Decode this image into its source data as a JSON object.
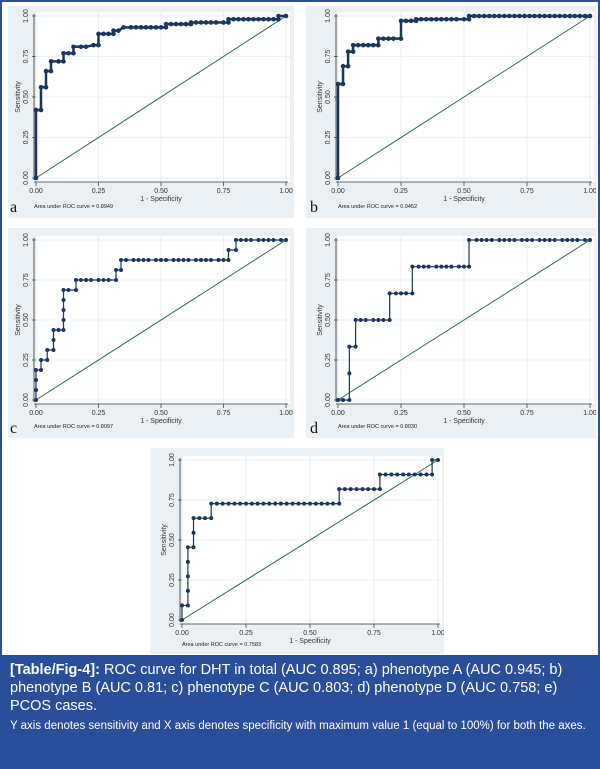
{
  "figure": {
    "caption_label": "[Table/Fig-4]:",
    "caption_text": " ROC curve for DHT in total (AUC 0.895; a) phenotype A (AUC 0.945; b) phenotype B (AUC 0.81; c) phenotype C (AUC 0.803; d) phenotype D (AUC 0.758; e) PCOS cases.",
    "caption_note": "Y axis denotes sensitivity and X axis denotes specificity with maximum value 1 (equal to 100%) for both the axes.",
    "colors": {
      "frame": "#2a4f9a",
      "curve": "#1b365d",
      "reference": "#2e6b4e",
      "plot_bg": "#ffffff",
      "panel_bg": "#eaf0f4",
      "grid": "#e3ebf0"
    }
  },
  "chart_data": [
    {
      "type": "line",
      "panel": "a",
      "xlabel": "1 - Specificity",
      "ylabel": "Sensitivity",
      "xticks": [
        "0.00",
        "0.25",
        "0.50",
        "0.75",
        "1.00"
      ],
      "yticks": [
        "0.00",
        "0.25",
        "0.50",
        "0.75",
        "1.00"
      ],
      "xlim": [
        0,
        1
      ],
      "ylim": [
        0,
        1
      ],
      "grid": true,
      "annotation": "Area under ROC curve = 0.8949",
      "series": [
        {
          "name": "ROC",
          "x": [
            0.0,
            0.0,
            0.02,
            0.02,
            0.04,
            0.04,
            0.06,
            0.06,
            0.09,
            0.11,
            0.11,
            0.13,
            0.15,
            0.15,
            0.18,
            0.2,
            0.23,
            0.25,
            0.25,
            0.27,
            0.29,
            0.31,
            0.31,
            0.33,
            0.35,
            0.38,
            0.4,
            0.42,
            0.44,
            0.46,
            0.48,
            0.5,
            0.52,
            0.52,
            0.54,
            0.56,
            0.58,
            0.6,
            0.62,
            0.62,
            0.64,
            0.66,
            0.68,
            0.7,
            0.72,
            0.75,
            0.77,
            0.77,
            0.79,
            0.81,
            0.83,
            0.85,
            0.87,
            0.89,
            0.91,
            0.93,
            0.95,
            0.97,
            0.97,
            1.0
          ],
          "y": [
            0.0,
            0.42,
            0.42,
            0.56,
            0.56,
            0.66,
            0.66,
            0.72,
            0.72,
            0.72,
            0.77,
            0.77,
            0.77,
            0.81,
            0.81,
            0.81,
            0.82,
            0.82,
            0.89,
            0.89,
            0.89,
            0.89,
            0.91,
            0.91,
            0.93,
            0.93,
            0.93,
            0.93,
            0.93,
            0.93,
            0.93,
            0.93,
            0.93,
            0.95,
            0.95,
            0.95,
            0.95,
            0.95,
            0.95,
            0.96,
            0.96,
            0.96,
            0.96,
            0.96,
            0.96,
            0.96,
            0.96,
            0.98,
            0.98,
            0.98,
            0.98,
            0.98,
            0.98,
            0.98,
            0.98,
            0.98,
            0.98,
            0.98,
            1.0,
            1.0
          ]
        },
        {
          "name": "Reference",
          "x": [
            0,
            1
          ],
          "y": [
            0,
            1
          ]
        }
      ]
    },
    {
      "type": "line",
      "panel": "b",
      "xlabel": "1 - Specificity",
      "ylabel": "Sensitivity",
      "xticks": [
        "0.00",
        "0.25",
        "0.50",
        "0.75",
        "1.00"
      ],
      "yticks": [
        "0.00",
        "0.25",
        "0.50",
        "0.75",
        "1.00"
      ],
      "xlim": [
        0,
        1
      ],
      "ylim": [
        0,
        1
      ],
      "grid": true,
      "annotation": "Area under ROC curve = 0.9452",
      "series": [
        {
          "name": "ROC",
          "x": [
            0.0,
            0.0,
            0.02,
            0.02,
            0.04,
            0.04,
            0.06,
            0.06,
            0.08,
            0.1,
            0.12,
            0.14,
            0.16,
            0.16,
            0.18,
            0.2,
            0.22,
            0.25,
            0.25,
            0.27,
            0.29,
            0.31,
            0.31,
            0.33,
            0.35,
            0.37,
            0.39,
            0.41,
            0.43,
            0.45,
            0.47,
            0.5,
            0.52,
            0.52,
            0.54,
            0.56,
            0.58,
            0.6,
            0.62,
            0.64,
            0.66,
            0.68,
            0.7,
            0.72,
            0.74,
            0.76,
            0.78,
            0.8,
            0.82,
            0.84,
            0.86,
            0.88,
            0.9,
            0.92,
            0.94,
            0.96,
            0.98,
            1.0
          ],
          "y": [
            0.0,
            0.58,
            0.58,
            0.69,
            0.69,
            0.78,
            0.78,
            0.82,
            0.82,
            0.82,
            0.82,
            0.82,
            0.82,
            0.86,
            0.86,
            0.86,
            0.86,
            0.86,
            0.97,
            0.97,
            0.97,
            0.97,
            0.98,
            0.98,
            0.98,
            0.98,
            0.98,
            0.98,
            0.98,
            0.98,
            0.98,
            0.98,
            0.98,
            1.0,
            1.0,
            1.0,
            1.0,
            1.0,
            1.0,
            1.0,
            1.0,
            1.0,
            1.0,
            1.0,
            1.0,
            1.0,
            1.0,
            1.0,
            1.0,
            1.0,
            1.0,
            1.0,
            1.0,
            1.0,
            1.0,
            1.0,
            1.0,
            1.0
          ]
        },
        {
          "name": "Reference",
          "x": [
            0,
            1
          ],
          "y": [
            0,
            1
          ]
        }
      ]
    },
    {
      "type": "line",
      "panel": "c",
      "xlabel": "1 - Specificity",
      "ylabel": "Sensitivity",
      "xticks": [
        "0.00",
        "0.25",
        "0.50",
        "0.75",
        "1.00"
      ],
      "yticks": [
        "0.00",
        "0.25",
        "0.50",
        "0.75",
        "1.00"
      ],
      "xlim": [
        0,
        1
      ],
      "ylim": [
        0,
        1
      ],
      "grid": true,
      "annotation": "Area under ROC curve = 0.8097",
      "series": [
        {
          "name": "ROC",
          "x": [
            0.0,
            0.0,
            0.0,
            0.0,
            0.02,
            0.02,
            0.045,
            0.045,
            0.07,
            0.07,
            0.07,
            0.09,
            0.11,
            0.11,
            0.11,
            0.11,
            0.11,
            0.13,
            0.16,
            0.16,
            0.18,
            0.2,
            0.22,
            0.25,
            0.27,
            0.29,
            0.32,
            0.32,
            0.34,
            0.34,
            0.36,
            0.39,
            0.41,
            0.43,
            0.45,
            0.48,
            0.5,
            0.52,
            0.55,
            0.57,
            0.59,
            0.61,
            0.64,
            0.66,
            0.68,
            0.7,
            0.73,
            0.75,
            0.77,
            0.77,
            0.8,
            0.8,
            0.82,
            0.84,
            0.86,
            0.89,
            0.91,
            0.93,
            0.95,
            0.98,
            1.0
          ],
          "y": [
            0.0,
            0.0625,
            0.125,
            0.1875,
            0.1875,
            0.25,
            0.25,
            0.3125,
            0.3125,
            0.375,
            0.4375,
            0.4375,
            0.4375,
            0.5,
            0.5625,
            0.625,
            0.6875,
            0.6875,
            0.6875,
            0.75,
            0.75,
            0.75,
            0.75,
            0.75,
            0.75,
            0.75,
            0.75,
            0.8125,
            0.8125,
            0.875,
            0.875,
            0.875,
            0.875,
            0.875,
            0.875,
            0.875,
            0.875,
            0.875,
            0.875,
            0.875,
            0.875,
            0.875,
            0.875,
            0.875,
            0.875,
            0.875,
            0.875,
            0.875,
            0.875,
            0.9375,
            0.9375,
            1.0,
            1.0,
            1.0,
            1.0,
            1.0,
            1.0,
            1.0,
            1.0,
            1.0,
            1.0
          ]
        },
        {
          "name": "Reference",
          "x": [
            0,
            1
          ],
          "y": [
            0,
            1
          ]
        }
      ]
    },
    {
      "type": "line",
      "panel": "d",
      "xlabel": "1 - Specificity",
      "ylabel": "Sensitivity",
      "xticks": [
        "0.00",
        "0.25",
        "0.50",
        "0.75",
        "1.00"
      ],
      "yticks": [
        "0.00",
        "0.25",
        "0.50",
        "0.75",
        "1.00"
      ],
      "xlim": [
        0,
        1
      ],
      "ylim": [
        0,
        1
      ],
      "grid": true,
      "annotation": "Area under ROC curve = 0.8030",
      "series": [
        {
          "name": "ROC",
          "x": [
            0.0,
            0.02,
            0.045,
            0.045,
            0.045,
            0.07,
            0.07,
            0.09,
            0.11,
            0.14,
            0.16,
            0.18,
            0.205,
            0.205,
            0.23,
            0.25,
            0.27,
            0.295,
            0.295,
            0.32,
            0.34,
            0.36,
            0.39,
            0.41,
            0.43,
            0.45,
            0.48,
            0.5,
            0.52,
            0.52,
            0.55,
            0.57,
            0.59,
            0.61,
            0.64,
            0.66,
            0.68,
            0.7,
            0.73,
            0.75,
            0.77,
            0.8,
            0.82,
            0.84,
            0.86,
            0.89,
            0.91,
            0.93,
            0.95,
            0.98,
            1.0
          ],
          "y": [
            0.0,
            0.0,
            0.0,
            0.1667,
            0.3333,
            0.3333,
            0.5,
            0.5,
            0.5,
            0.5,
            0.5,
            0.5,
            0.5,
            0.6667,
            0.6667,
            0.6667,
            0.6667,
            0.6667,
            0.8333,
            0.8333,
            0.8333,
            0.8333,
            0.8333,
            0.8333,
            0.8333,
            0.8333,
            0.8333,
            0.8333,
            0.8333,
            1.0,
            1.0,
            1.0,
            1.0,
            1.0,
            1.0,
            1.0,
            1.0,
            1.0,
            1.0,
            1.0,
            1.0,
            1.0,
            1.0,
            1.0,
            1.0,
            1.0,
            1.0,
            1.0,
            1.0,
            1.0,
            1.0
          ]
        },
        {
          "name": "Reference",
          "x": [
            0,
            1
          ],
          "y": [
            0,
            1
          ]
        }
      ]
    },
    {
      "type": "line",
      "panel": "e",
      "xlabel": "1 - Specificity",
      "ylabel": "Sensitivity",
      "xticks": [
        "0.00",
        "0.25",
        "0.50",
        "0.75",
        "1.00"
      ],
      "yticks": [
        "0.00",
        "0.25",
        "0.50",
        "0.75",
        "1.00"
      ],
      "xlim": [
        0,
        1
      ],
      "ylim": [
        0,
        1
      ],
      "grid": true,
      "annotation": "Area under ROC curve = 0.7583",
      "series": [
        {
          "name": "ROC",
          "x": [
            0.0,
            0.0,
            0.023,
            0.023,
            0.023,
            0.023,
            0.023,
            0.045,
            0.045,
            0.045,
            0.068,
            0.09,
            0.114,
            0.114,
            0.136,
            0.159,
            0.182,
            0.205,
            0.227,
            0.25,
            0.273,
            0.295,
            0.318,
            0.341,
            0.364,
            0.386,
            0.409,
            0.432,
            0.455,
            0.477,
            0.5,
            0.523,
            0.545,
            0.568,
            0.59,
            0.614,
            0.614,
            0.636,
            0.659,
            0.682,
            0.705,
            0.727,
            0.75,
            0.773,
            0.773,
            0.795,
            0.818,
            0.841,
            0.864,
            0.886,
            0.909,
            0.932,
            0.955,
            0.977,
            0.977,
            1.0
          ],
          "y": [
            0.0,
            0.0909,
            0.0909,
            0.1818,
            0.2727,
            0.3636,
            0.4545,
            0.4545,
            0.5455,
            0.6364,
            0.6364,
            0.6364,
            0.6364,
            0.7273,
            0.7273,
            0.7273,
            0.7273,
            0.7273,
            0.7273,
            0.7273,
            0.7273,
            0.7273,
            0.7273,
            0.7273,
            0.7273,
            0.7273,
            0.7273,
            0.7273,
            0.7273,
            0.7273,
            0.7273,
            0.7273,
            0.7273,
            0.7273,
            0.7273,
            0.7273,
            0.8182,
            0.8182,
            0.8182,
            0.8182,
            0.8182,
            0.8182,
            0.8182,
            0.8182,
            0.9091,
            0.9091,
            0.9091,
            0.9091,
            0.9091,
            0.9091,
            0.9091,
            0.9091,
            0.9091,
            0.9091,
            1.0,
            1.0
          ]
        },
        {
          "name": "Reference",
          "x": [
            0,
            1
          ],
          "y": [
            0,
            1
          ]
        }
      ]
    }
  ]
}
